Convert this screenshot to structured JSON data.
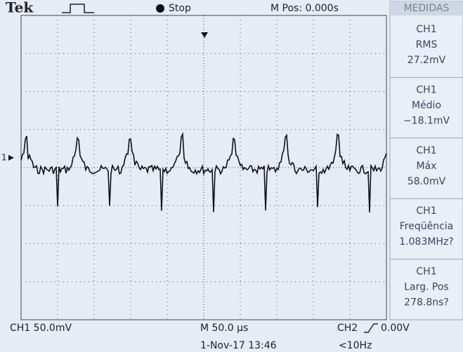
{
  "header": {
    "brand": "Tek",
    "status": "Stop",
    "position": "M Pos: 0.000s"
  },
  "marker": "1",
  "menu": {
    "title": "MEDIDAS",
    "items": [
      {
        "source": "CH1",
        "label": "RMS",
        "value": "27.2mV"
      },
      {
        "source": "CH1",
        "label": "Médio",
        "value": "−18.1mV"
      },
      {
        "source": "CH1",
        "label": "Máx",
        "value": "58.0mV"
      },
      {
        "source": "CH1",
        "label": "Freqüência",
        "value": "1.083MHz?"
      },
      {
        "source": "CH1",
        "label": "Larg. Pos",
        "value": "278.8ns?"
      }
    ]
  },
  "footer": {
    "channel": "CH1  50.0mV",
    "timebase": "M 50.0 µs",
    "trigger_source": "CH2",
    "trigger_level": "0.00V",
    "date": "1-Nov-17 13:46",
    "frequency": "<10Hz"
  }
}
